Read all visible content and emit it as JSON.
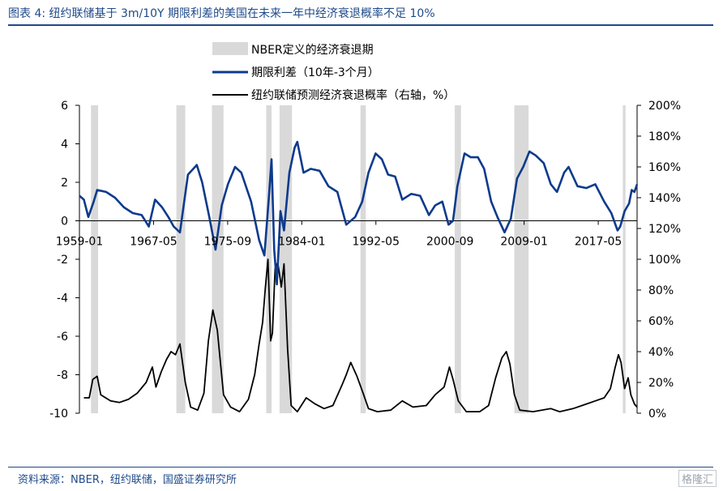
{
  "title": "图表 4:  纽约联储基于 3m/10Y 期限利差的美国在未来一年中经济衰退概率不足 10%",
  "source": "资料来源：NBER，纽约联储，国盛证券研究所",
  "watermark": "格隆汇",
  "chart_data": {
    "type": "line",
    "x_tick_labels": [
      "1959-01",
      "1967-05",
      "1975-09",
      "1984-01",
      "1992-05",
      "2000-09",
      "2009-01",
      "2017-05"
    ],
    "x_range": [
      1959.0,
      2021.7
    ],
    "y_left": {
      "range": [
        -10,
        6
      ],
      "ticks": [
        "6",
        "4",
        "2",
        "0",
        "-2",
        "-4",
        "-6",
        "-8",
        "-10"
      ]
    },
    "y_right": {
      "range": [
        0,
        200
      ],
      "ticks": [
        "200%",
        "180%",
        "160%",
        "140%",
        "120%",
        "100%",
        "80%",
        "60%",
        "40%",
        "20%",
        "0%"
      ]
    },
    "legend": {
      "recession": "NBER定义的经济衰退期",
      "spread": "期限利差（10年-3个月）",
      "probability": "纽约联储预测经济衰退概率（右轴，%）"
    },
    "colors": {
      "recession": "#d9d9d9",
      "spread": "#0d3a8c",
      "probability": "#000000"
    },
    "recessions": [
      [
        1960.3,
        1961.1
      ],
      [
        1969.9,
        1970.9
      ],
      [
        1973.9,
        1975.2
      ],
      [
        1980.0,
        1980.6
      ],
      [
        1981.5,
        1982.9
      ],
      [
        1990.6,
        1991.2
      ],
      [
        2001.2,
        2001.9
      ],
      [
        2007.9,
        2009.5
      ],
      [
        2020.1,
        2020.4
      ]
    ],
    "spread": {
      "name": "期限利差（10年-3个月）",
      "points": [
        [
          1959.0,
          1.3
        ],
        [
          1959.5,
          1.1
        ],
        [
          1960.0,
          0.2
        ],
        [
          1960.6,
          1.0
        ],
        [
          1961.0,
          1.6
        ],
        [
          1962.0,
          1.5
        ],
        [
          1963.0,
          1.2
        ],
        [
          1964.0,
          0.7
        ],
        [
          1965.0,
          0.4
        ],
        [
          1966.0,
          0.3
        ],
        [
          1966.8,
          -0.3
        ],
        [
          1967.5,
          1.1
        ],
        [
          1968.3,
          0.7
        ],
        [
          1969.0,
          0.2
        ],
        [
          1969.6,
          -0.3
        ],
        [
          1970.3,
          -0.6
        ],
        [
          1971.2,
          2.4
        ],
        [
          1972.2,
          2.9
        ],
        [
          1972.8,
          2.0
        ],
        [
          1973.6,
          0.2
        ],
        [
          1974.3,
          -1.5
        ],
        [
          1975.0,
          0.8
        ],
        [
          1975.7,
          1.9
        ],
        [
          1976.5,
          2.8
        ],
        [
          1977.2,
          2.5
        ],
        [
          1978.3,
          1.0
        ],
        [
          1979.2,
          -1.0
        ],
        [
          1979.8,
          -1.8
        ],
        [
          1980.3,
          1.2
        ],
        [
          1980.6,
          3.2
        ],
        [
          1980.9,
          -1.5
        ],
        [
          1981.2,
          -3.3
        ],
        [
          1981.6,
          0.5
        ],
        [
          1982.0,
          -0.5
        ],
        [
          1982.6,
          2.5
        ],
        [
          1983.2,
          3.8
        ],
        [
          1983.5,
          4.1
        ],
        [
          1984.2,
          2.5
        ],
        [
          1985.0,
          2.7
        ],
        [
          1986.0,
          2.6
        ],
        [
          1987.0,
          1.8
        ],
        [
          1988.0,
          1.5
        ],
        [
          1989.0,
          -0.2
        ],
        [
          1990.0,
          0.2
        ],
        [
          1990.8,
          1.0
        ],
        [
          1991.5,
          2.5
        ],
        [
          1992.3,
          3.5
        ],
        [
          1993.0,
          3.2
        ],
        [
          1993.7,
          2.4
        ],
        [
          1994.5,
          2.3
        ],
        [
          1995.3,
          1.1
        ],
        [
          1996.3,
          1.4
        ],
        [
          1997.3,
          1.3
        ],
        [
          1998.3,
          0.3
        ],
        [
          1999.0,
          0.8
        ],
        [
          1999.8,
          1.0
        ],
        [
          2000.5,
          -0.2
        ],
        [
          2001.0,
          0.0
        ],
        [
          2001.5,
          1.8
        ],
        [
          2002.3,
          3.5
        ],
        [
          2003.0,
          3.3
        ],
        [
          2003.8,
          3.3
        ],
        [
          2004.5,
          2.7
        ],
        [
          2005.3,
          1.0
        ],
        [
          2006.0,
          0.2
        ],
        [
          2006.8,
          -0.6
        ],
        [
          2007.5,
          0.1
        ],
        [
          2008.2,
          2.2
        ],
        [
          2008.9,
          2.8
        ],
        [
          2009.6,
          3.6
        ],
        [
          2010.3,
          3.4
        ],
        [
          2011.2,
          3.0
        ],
        [
          2012.0,
          1.9
        ],
        [
          2012.7,
          1.5
        ],
        [
          2013.5,
          2.5
        ],
        [
          2014.0,
          2.8
        ],
        [
          2015.0,
          1.8
        ],
        [
          2016.0,
          1.7
        ],
        [
          2017.0,
          1.9
        ],
        [
          2018.0,
          1.0
        ],
        [
          2018.8,
          0.4
        ],
        [
          2019.5,
          -0.5
        ],
        [
          2019.8,
          -0.3
        ],
        [
          2020.3,
          0.5
        ],
        [
          2020.8,
          0.9
        ],
        [
          2021.1,
          1.6
        ],
        [
          2021.4,
          1.5
        ],
        [
          2021.7,
          1.9
        ]
      ]
    },
    "probability": {
      "name": "纽约联储预测经济衰退概率（右轴，%）",
      "points": [
        [
          1959.5,
          10.0
        ],
        [
          1960.1,
          10.0
        ],
        [
          1960.5,
          22.0
        ],
        [
          1961.0,
          24.0
        ],
        [
          1961.4,
          12.0
        ],
        [
          1962.5,
          8.0
        ],
        [
          1963.5,
          7.0
        ],
        [
          1964.5,
          9.0
        ],
        [
          1965.5,
          13.0
        ],
        [
          1966.5,
          20.0
        ],
        [
          1967.2,
          30.0
        ],
        [
          1967.6,
          17.0
        ],
        [
          1968.2,
          27.0
        ],
        [
          1968.8,
          35.0
        ],
        [
          1969.3,
          40.0
        ],
        [
          1969.8,
          38.0
        ],
        [
          1970.3,
          45.0
        ],
        [
          1970.9,
          20.0
        ],
        [
          1971.5,
          4.0
        ],
        [
          1972.3,
          2.0
        ],
        [
          1973.0,
          13.0
        ],
        [
          1973.5,
          47.0
        ],
        [
          1974.0,
          67.0
        ],
        [
          1974.5,
          54.0
        ],
        [
          1975.2,
          12.0
        ],
        [
          1976.0,
          4.0
        ],
        [
          1977.0,
          1.0
        ],
        [
          1978.0,
          9.0
        ],
        [
          1978.7,
          25.0
        ],
        [
          1979.2,
          45.0
        ],
        [
          1979.6,
          59.0
        ],
        [
          1979.9,
          81.0
        ],
        [
          1980.2,
          100.0
        ],
        [
          1980.5,
          47.0
        ],
        [
          1980.7,
          52.0
        ],
        [
          1981.0,
          94.0
        ],
        [
          1981.3,
          98.0
        ],
        [
          1981.7,
          82.0
        ],
        [
          1982.0,
          97.0
        ],
        [
          1982.4,
          42.0
        ],
        [
          1982.8,
          5.0
        ],
        [
          1983.5,
          1.0
        ],
        [
          1984.5,
          10.0
        ],
        [
          1985.5,
          6.0
        ],
        [
          1986.5,
          3.0
        ],
        [
          1987.5,
          5.0
        ],
        [
          1988.5,
          18.0
        ],
        [
          1989.0,
          25.0
        ],
        [
          1989.5,
          33.0
        ],
        [
          1990.2,
          24.0
        ],
        [
          1990.9,
          13.0
        ],
        [
          1991.5,
          3.0
        ],
        [
          1992.5,
          1.0
        ],
        [
          1994.0,
          2.0
        ],
        [
          1995.3,
          8.0
        ],
        [
          1996.5,
          4.0
        ],
        [
          1998.0,
          5.0
        ],
        [
          1999.0,
          12.0
        ],
        [
          2000.0,
          17.0
        ],
        [
          2000.6,
          30.0
        ],
        [
          2001.0,
          22.0
        ],
        [
          2001.6,
          8.0
        ],
        [
          2002.5,
          1.0
        ],
        [
          2004.0,
          1.0
        ],
        [
          2005.0,
          5.0
        ],
        [
          2005.8,
          23.0
        ],
        [
          2006.5,
          36.0
        ],
        [
          2007.0,
          40.0
        ],
        [
          2007.4,
          32.0
        ],
        [
          2007.9,
          12.0
        ],
        [
          2008.5,
          2.0
        ],
        [
          2010.0,
          1.0
        ],
        [
          2012.0,
          3.0
        ],
        [
          2013.0,
          1.0
        ],
        [
          2014.5,
          3.0
        ],
        [
          2016.0,
          6.0
        ],
        [
          2017.0,
          8.0
        ],
        [
          2018.0,
          10.0
        ],
        [
          2018.7,
          16.0
        ],
        [
          2019.2,
          29.0
        ],
        [
          2019.6,
          38.0
        ],
        [
          2019.9,
          33.0
        ],
        [
          2020.3,
          16.0
        ],
        [
          2020.7,
          23.0
        ],
        [
          2021.0,
          12.0
        ],
        [
          2021.4,
          6.0
        ],
        [
          2021.7,
          4.0
        ]
      ]
    }
  }
}
